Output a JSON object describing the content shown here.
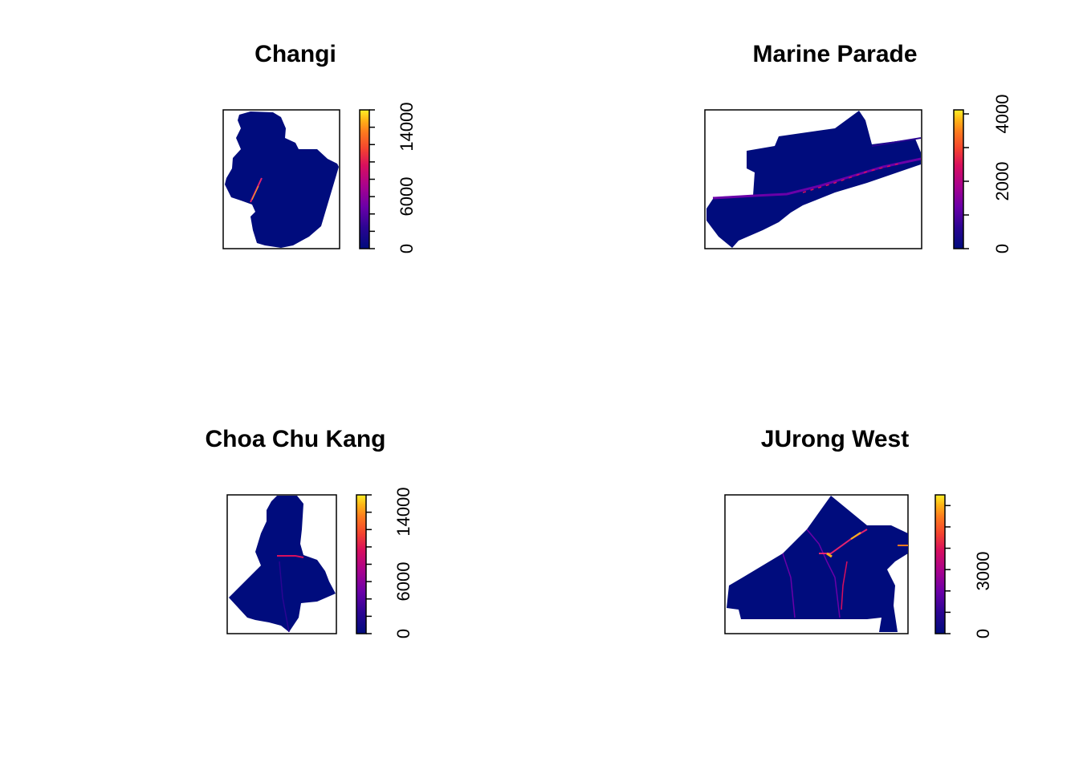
{
  "figure": {
    "panels": [
      {
        "title": "Changi",
        "legend_ticks": [
          "0",
          "6000",
          "14000"
        ],
        "legend_max": 16000,
        "legend_labeled_values": [
          0,
          6000,
          14000
        ],
        "legend_minor_step": 2000
      },
      {
        "title": "Marine Parade",
        "legend_ticks": [
          "0",
          "2000",
          "4000"
        ],
        "legend_max": 4000,
        "legend_labeled_values": [
          0,
          2000,
          4000
        ],
        "legend_minor_step": 1000
      },
      {
        "title": "Choa Chu Kang",
        "legend_ticks": [
          "0",
          "6000",
          "14000"
        ],
        "legend_max": 16000,
        "legend_labeled_values": [
          0,
          6000,
          14000
        ],
        "legend_minor_step": 2000
      },
      {
        "title": "JUrong West",
        "legend_ticks": [
          "0",
          "3000"
        ],
        "legend_max": 6500,
        "legend_labeled_values": [
          0,
          3000
        ],
        "legend_minor_step": 1000
      }
    ],
    "colors": {
      "fill": "#000C7D",
      "palette": [
        "#000C7D",
        "#2A0592",
        "#6A00A8",
        "#A8028E",
        "#D80F5E",
        "#F4432F",
        "#FD7A1E",
        "#FFB616",
        "#FFF028"
      ],
      "roads_hot": "#E4236F",
      "roads_warm": "#F7B11E"
    }
  }
}
